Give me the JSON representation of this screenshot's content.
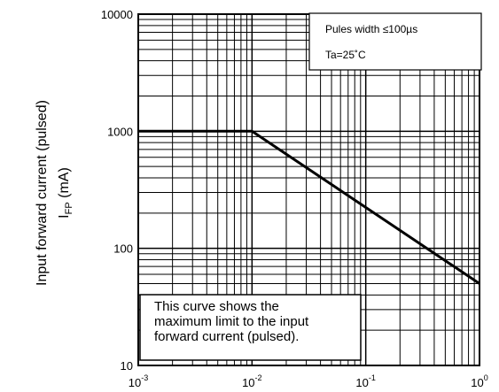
{
  "chart_data": {
    "type": "line",
    "title": "",
    "xscale": "log",
    "yscale": "log",
    "xlim": [
      0.001,
      1
    ],
    "ylim": [
      10,
      10000
    ],
    "grid": true,
    "x_ticks": [
      {
        "base": "10",
        "exp": "-3"
      },
      {
        "base": "10",
        "exp": "-2"
      },
      {
        "base": "10",
        "exp": "-1"
      },
      {
        "base": "10",
        "exp": "0"
      }
    ],
    "y_ticks": [
      "10",
      "100",
      "1000",
      "10000"
    ],
    "ylabel_line1": "Input forward current (pulsed)",
    "ylabel_symbol": "I",
    "ylabel_subscript": "FP",
    "ylabel_unit": "(mA)",
    "conditions": [
      "Pules width ≤100µs",
      "Ta=25˚C"
    ],
    "caption": [
      "This curve shows the",
      "maximum limit to the input",
      "forward current (pulsed)."
    ],
    "series": [
      {
        "x": [
          0.001,
          0.01,
          1
        ],
        "y": [
          1000,
          1000,
          50
        ]
      }
    ],
    "line_color": "#000000"
  }
}
